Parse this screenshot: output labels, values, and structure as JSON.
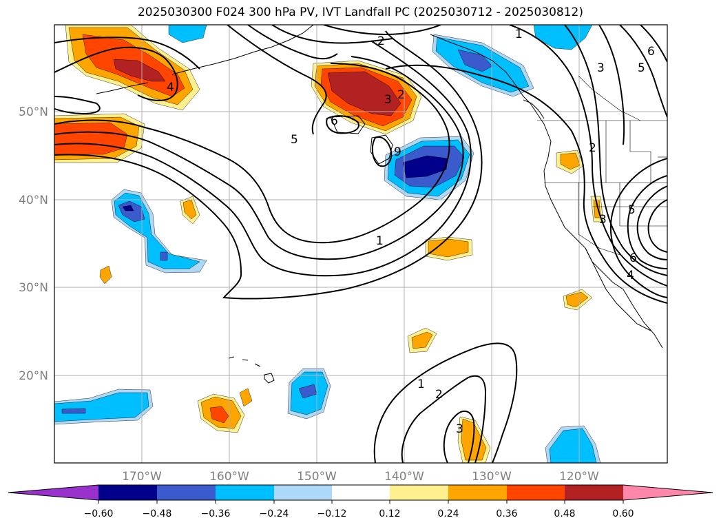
{
  "title": "2025030300 F024 300 hPa PV, IVT Landfall PC (2025030712 - 2025030812)",
  "colors": {
    "neg_extend": "#9932cc",
    "neg_060": "#00008b",
    "neg_048": "#3b5bcd",
    "neg_036": "#00bfff",
    "neg_024": "#add8f7",
    "neutral": "#ffffff",
    "pos_012": "#fff08f",
    "pos_024": "#ffa500",
    "pos_036": "#ff4500",
    "pos_048": "#b22222",
    "pos_extend": "#ff88aa",
    "contour": "#000000",
    "grid": "#b0b0b0"
  },
  "lon_ticks": [
    "170°W",
    "160°W",
    "150°W",
    "140°W",
    "130°W",
    "120°W"
  ],
  "lat_ticks": [
    "50°N",
    "40°N",
    "30°N",
    "20°N"
  ],
  "colorbar_ticks": [
    "−0.60",
    "−0.48",
    "−0.36",
    "−0.24",
    "−0.12",
    "0.12",
    "0.24",
    "0.36",
    "0.48",
    "0.60"
  ],
  "contour_labels": [
    "5",
    "4",
    "2",
    "1",
    "2",
    "3",
    "6",
    "9",
    "1",
    "1",
    "2",
    "3",
    "3",
    "2",
    "5",
    "6",
    "4",
    "6",
    "5",
    "3"
  ]
}
